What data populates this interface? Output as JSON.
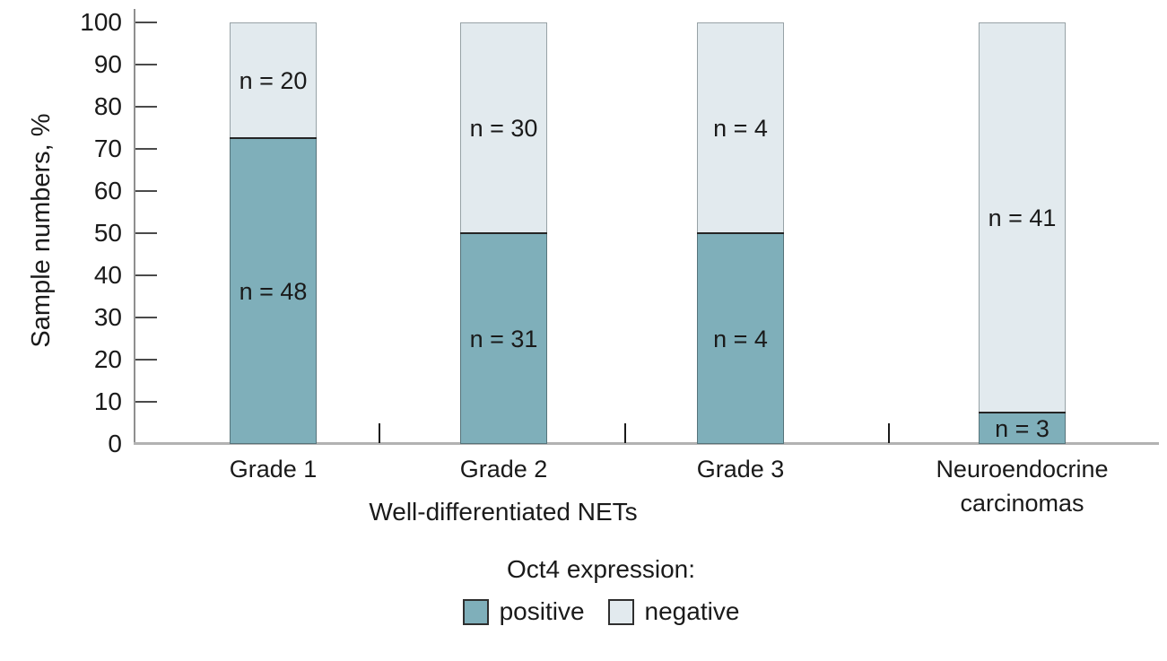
{
  "y_axis": {
    "title": "Sample numbers, %"
  },
  "x_axis": {
    "group_label": "Well-differentiated NETs"
  },
  "legend": {
    "title": "Oct4 expression:",
    "items": [
      {
        "label": "positive",
        "color": "#7fafba"
      },
      {
        "label": "negative",
        "color": "#e2eaee"
      }
    ]
  },
  "chart_data": {
    "type": "bar",
    "stacked": true,
    "title": "",
    "xlabel": "Well-differentiated NETs",
    "ylabel": "Sample numbers, %",
    "ylim": [
      0,
      100
    ],
    "y_ticks": [
      100,
      90,
      80,
      70,
      60,
      50,
      40,
      30,
      20,
      10,
      0
    ],
    "grid": false,
    "legend_position": "bottom",
    "categories": [
      "Grade 1",
      "Grade 2",
      "Grade 3",
      "Neuroendocrine carcinomas"
    ],
    "category_group": {
      "label": "Well-differentiated NETs",
      "covers": [
        "Grade 1",
        "Grade 2",
        "Grade 3"
      ]
    },
    "series": [
      {
        "name": "positive",
        "color": "#7fafba",
        "counts": [
          48,
          31,
          4,
          3
        ],
        "percent": [
          72.5,
          50,
          50,
          7.5
        ]
      },
      {
        "name": "negative",
        "color": "#e2eaee",
        "counts": [
          20,
          30,
          4,
          41
        ],
        "percent": [
          27.5,
          50,
          50,
          92.5
        ]
      }
    ],
    "segment_labels": {
      "positive": [
        "n = 48",
        "n = 31",
        "n = 4",
        "n = 3"
      ],
      "negative": [
        "n = 20",
        "n = 30",
        "n = 4",
        "n = 41"
      ]
    }
  }
}
